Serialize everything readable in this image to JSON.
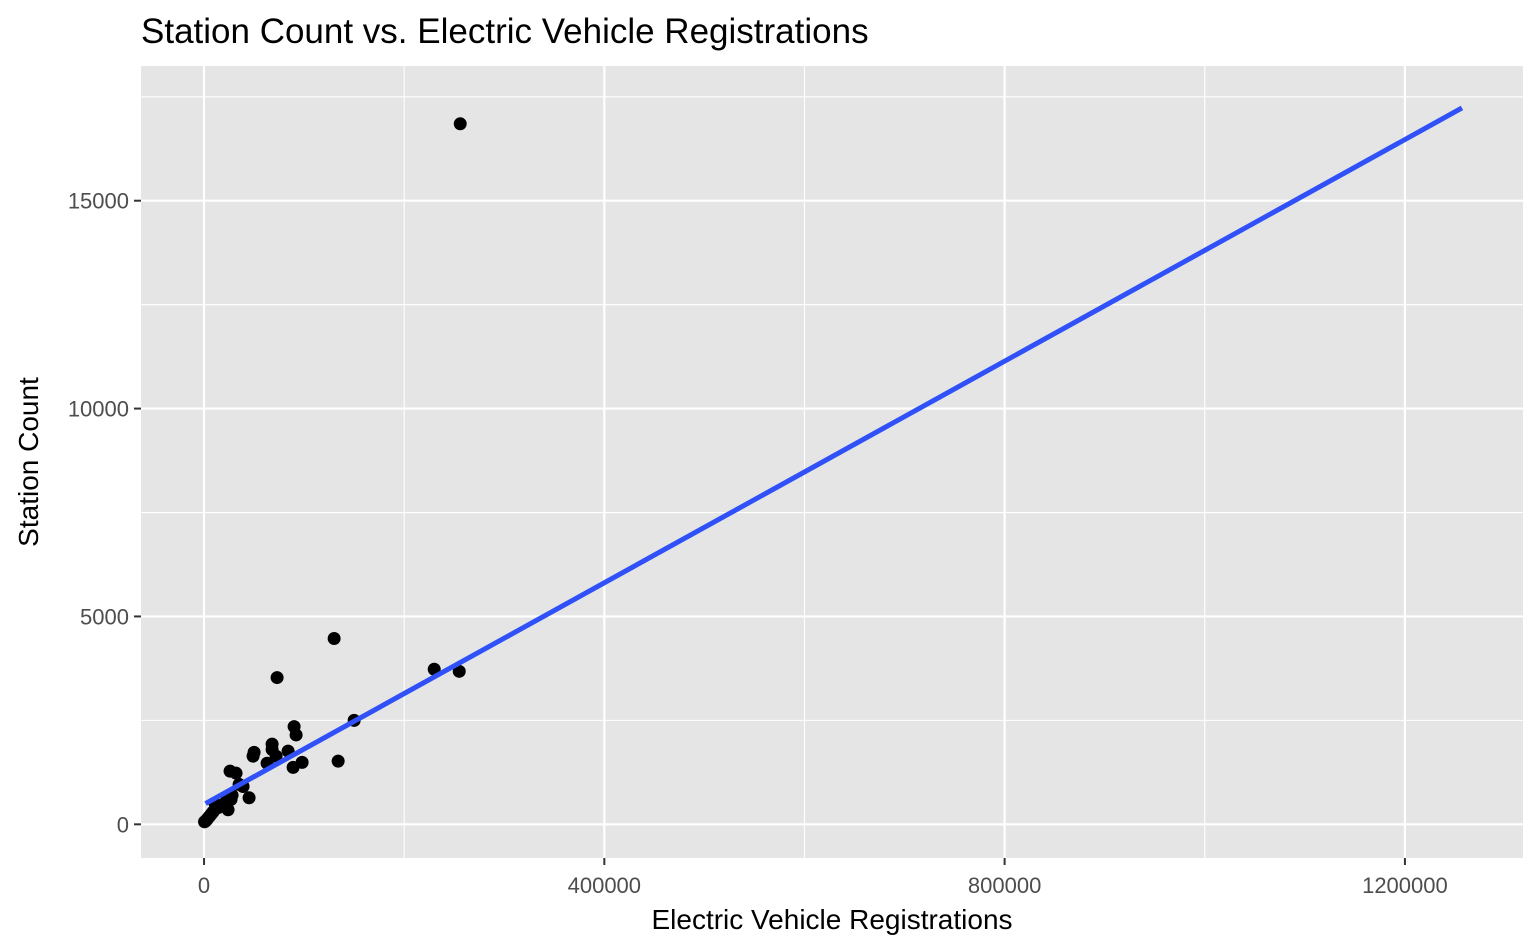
{
  "chart_data": {
    "type": "scatter",
    "title": "Station Count vs. Electric Vehicle Registrations",
    "xlabel": "Electric Vehicle Registrations",
    "ylabel": "Station Count",
    "xlim": [
      -63000,
      1318000
    ],
    "ylim": [
      -810,
      18240
    ],
    "x_ticks": [
      0,
      400000,
      800000,
      1200000
    ],
    "x_tick_labels": [
      "0",
      "400000",
      "800000",
      "1200000"
    ],
    "y_ticks": [
      0,
      5000,
      10000,
      15000
    ],
    "y_tick_labels": [
      "0",
      "5000",
      "10000",
      "15000"
    ],
    "grid": true,
    "legend": "none",
    "colors": {
      "panel_background": "#e5e5e5",
      "grid": "#ffffff",
      "points": "#000000",
      "fit_line": "#3050f8",
      "tick_text": "#4d4d4d"
    },
    "points": [
      {
        "x": 256000,
        "y": 16850
      },
      {
        "x": 130000,
        "y": 4470
      },
      {
        "x": 230000,
        "y": 3730
      },
      {
        "x": 255000,
        "y": 3680
      },
      {
        "x": 73000,
        "y": 3530
      },
      {
        "x": 150000,
        "y": 2500
      },
      {
        "x": 90000,
        "y": 2350
      },
      {
        "x": 92000,
        "y": 2150
      },
      {
        "x": 68000,
        "y": 1930
      },
      {
        "x": 68000,
        "y": 1800
      },
      {
        "x": 84000,
        "y": 1760
      },
      {
        "x": 50000,
        "y": 1730
      },
      {
        "x": 49000,
        "y": 1640
      },
      {
        "x": 72000,
        "y": 1640
      },
      {
        "x": 63000,
        "y": 1470
      },
      {
        "x": 98000,
        "y": 1490
      },
      {
        "x": 134000,
        "y": 1520
      },
      {
        "x": 89000,
        "y": 1370
      },
      {
        "x": 26000,
        "y": 1280
      },
      {
        "x": 32000,
        "y": 1230
      },
      {
        "x": 35000,
        "y": 960
      },
      {
        "x": 39000,
        "y": 910
      },
      {
        "x": 45000,
        "y": 640
      },
      {
        "x": 28000,
        "y": 700
      },
      {
        "x": 27000,
        "y": 600
      },
      {
        "x": 22000,
        "y": 540
      },
      {
        "x": 20000,
        "y": 480
      },
      {
        "x": 24000,
        "y": 350
      },
      {
        "x": 17000,
        "y": 450
      },
      {
        "x": 14000,
        "y": 400
      },
      {
        "x": 11000,
        "y": 500
      },
      {
        "x": 9000,
        "y": 300
      },
      {
        "x": 7000,
        "y": 240
      },
      {
        "x": 5000,
        "y": 180
      },
      {
        "x": 3000,
        "y": 120
      },
      {
        "x": 2000,
        "y": 90
      },
      {
        "x": 1000,
        "y": 70
      },
      {
        "x": 500,
        "y": 60
      }
    ],
    "fit_line": {
      "label": "linear fit",
      "x": [
        1500,
        1257000
      ],
      "y": [
        500,
        17230
      ]
    }
  }
}
